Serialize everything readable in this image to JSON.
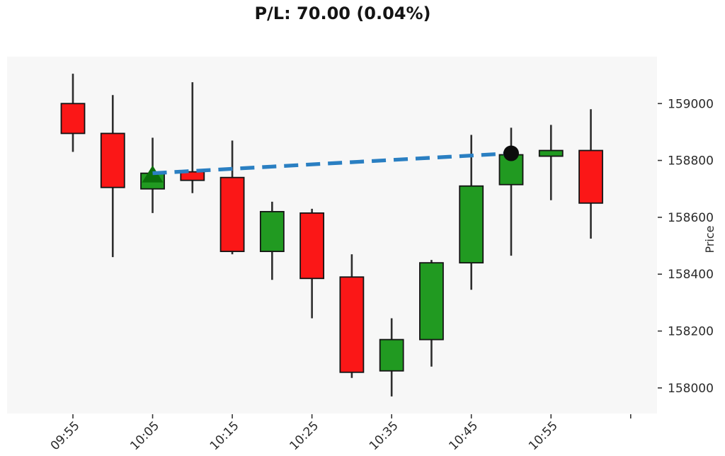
{
  "chart_data": {
    "type": "candlestick",
    "title": "P/L: 70.00 (0.04%)",
    "ylabel": "Price",
    "ylim": [
      157910,
      159165
    ],
    "grid": false,
    "y_axis_side": "right",
    "y_tick_values": [
      159000,
      158800,
      158600,
      158400,
      158200,
      158000
    ],
    "x_tick_labels": [
      "09:55",
      "10:05",
      "10:15",
      "10:25",
      "10:35",
      "10:45",
      "10:55"
    ],
    "candles": [
      {
        "time": "09:55",
        "open": 159000,
        "high": 159105,
        "low": 158830,
        "close": 158895
      },
      {
        "time": "10:00",
        "open": 158895,
        "high": 159030,
        "low": 158460,
        "close": 158705
      },
      {
        "time": "10:05",
        "open": 158700,
        "high": 158880,
        "low": 158615,
        "close": 158755
      },
      {
        "time": "10:10",
        "open": 158760,
        "high": 159075,
        "low": 158685,
        "close": 158730
      },
      {
        "time": "10:15",
        "open": 158740,
        "high": 158870,
        "low": 158470,
        "close": 158480
      },
      {
        "time": "10:20",
        "open": 158480,
        "high": 158655,
        "low": 158380,
        "close": 158620
      },
      {
        "time": "10:25",
        "open": 158615,
        "high": 158630,
        "low": 158245,
        "close": 158385
      },
      {
        "time": "10:30",
        "open": 158390,
        "high": 158470,
        "low": 158035,
        "close": 158055
      },
      {
        "time": "10:35",
        "open": 158060,
        "high": 158245,
        "low": 157970,
        "close": 158170
      },
      {
        "time": "10:40",
        "open": 158170,
        "high": 158450,
        "low": 158075,
        "close": 158440
      },
      {
        "time": "10:45",
        "open": 158440,
        "high": 158890,
        "low": 158345,
        "close": 158710
      },
      {
        "time": "10:50",
        "open": 158715,
        "high": 158915,
        "low": 158465,
        "close": 158820
      },
      {
        "time": "10:55",
        "open": 158815,
        "high": 158925,
        "low": 158660,
        "close": 158835
      },
      {
        "time": "11:00",
        "open": 158835,
        "high": 158980,
        "low": 158525,
        "close": 158650
      }
    ],
    "trade": {
      "entry": {
        "time": "10:05",
        "price": 158755,
        "marker": "triangle-up"
      },
      "exit": {
        "time": "10:50",
        "price": 158825,
        "marker": "circle"
      },
      "line_style": "dashed",
      "pl_value": "70.00",
      "pl_percent": "0.04%"
    },
    "colors": {
      "up": "#219a21",
      "down": "#fb1717",
      "candle_edge": "#141414",
      "wick": "#2e2e2e",
      "trade_line": "#2a7fc2",
      "entry_marker": "#0b6e0b",
      "exit_marker": "#0c0c0c",
      "plot_bg": "#f7f7f7",
      "tick_mark": "#333333",
      "tick_text": "#2b2b2b",
      "title_text": "#141414"
    }
  }
}
